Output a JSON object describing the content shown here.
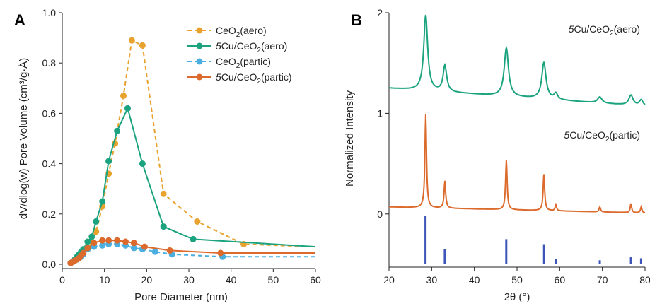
{
  "colors": {
    "ceo2_aero": "#E8A22E",
    "cu_ceo2_aero": "#1BA37F",
    "ceo2_partic": "#4AAEE0",
    "cu_ceo2_partic": "#DB6A2C",
    "reference": "#3D55B8",
    "axis": "#222222"
  },
  "chart_data": [
    {
      "panel": "A",
      "type": "line",
      "xlabel": "Pore Diameter (nm)",
      "ylabel": "dV/dlog(w) Pore Volume (cm³/g·Å)",
      "xlim": [
        0,
        60
      ],
      "ylim": [
        0,
        1.0
      ],
      "xticks": [
        "0",
        "10",
        "20",
        "30",
        "40",
        "50",
        "60"
      ],
      "yticks": [
        "0.0",
        "0.2",
        "0.4",
        "0.6",
        "0.8",
        "1.0"
      ],
      "legend_position": "top-right",
      "series": [
        {
          "name": "CeO₂(aero)",
          "name_parts": [
            "CeO",
            "2",
            "(aero)"
          ],
          "style": "dashed",
          "color": "#E8A22E",
          "points": [
            [
              2.0,
              0.005
            ],
            [
              2.5,
              0.01
            ],
            [
              3.0,
              0.015
            ],
            [
              3.5,
              0.02
            ],
            [
              4.0,
              0.025
            ],
            [
              4.5,
              0.03
            ],
            [
              5.0,
              0.04
            ],
            [
              6.0,
              0.06
            ],
            [
              7.0,
              0.09
            ],
            [
              8.0,
              0.13
            ],
            [
              9.5,
              0.23
            ],
            [
              11.0,
              0.36
            ],
            [
              12.5,
              0.48
            ],
            [
              14.5,
              0.67
            ],
            [
              16.5,
              0.89
            ],
            [
              19.0,
              0.87
            ],
            [
              24.0,
              0.28
            ],
            [
              32.0,
              0.17
            ],
            [
              43.0,
              0.08
            ],
            [
              60.0,
              0.07
            ]
          ]
        },
        {
          "name": "5Cu/CeO₂(aero)",
          "name_parts": [
            "5",
            "Cu/CeO",
            "2",
            "(aero)"
          ],
          "style": "solid",
          "color": "#1BA37F",
          "points": [
            [
              2.0,
              0.005
            ],
            [
              2.5,
              0.01
            ],
            [
              3.0,
              0.02
            ],
            [
              3.5,
              0.03
            ],
            [
              4.0,
              0.04
            ],
            [
              4.5,
              0.05
            ],
            [
              5.0,
              0.06
            ],
            [
              6.0,
              0.09
            ],
            [
              7.0,
              0.11
            ],
            [
              8.0,
              0.17
            ],
            [
              9.5,
              0.25
            ],
            [
              11.0,
              0.41
            ],
            [
              13.0,
              0.53
            ],
            [
              15.5,
              0.62
            ],
            [
              19.0,
              0.4
            ],
            [
              24.0,
              0.15
            ],
            [
              31.0,
              0.1
            ],
            [
              60.0,
              0.07
            ]
          ]
        },
        {
          "name": "CeO₂(partic)",
          "name_parts": [
            "CeO",
            "2",
            "(partic)"
          ],
          "style": "dashed",
          "color": "#4AAEE0",
          "points": [
            [
              2.0,
              0.005
            ],
            [
              2.5,
              0.01
            ],
            [
              3.0,
              0.015
            ],
            [
              3.5,
              0.02
            ],
            [
              4.0,
              0.025
            ],
            [
              4.5,
              0.03
            ],
            [
              5.0,
              0.04
            ],
            [
              6.0,
              0.06
            ],
            [
              7.5,
              0.07
            ],
            [
              9.5,
              0.075
            ],
            [
              11.0,
              0.08
            ],
            [
              13.0,
              0.08
            ],
            [
              15.0,
              0.075
            ],
            [
              17.0,
              0.065
            ],
            [
              19.0,
              0.06
            ],
            [
              22.0,
              0.05
            ],
            [
              26.0,
              0.04
            ],
            [
              38.0,
              0.03
            ],
            [
              60.0,
              0.03
            ]
          ]
        },
        {
          "name": "5Cu/CeO₂(partic)",
          "name_parts": [
            "5",
            "Cu/CeO",
            "2",
            "(partic)"
          ],
          "style": "solid",
          "color": "#DB6A2C",
          "points": [
            [
              2.0,
              0.005
            ],
            [
              2.5,
              0.01
            ],
            [
              3.0,
              0.015
            ],
            [
              3.5,
              0.02
            ],
            [
              4.0,
              0.025
            ],
            [
              4.5,
              0.035
            ],
            [
              5.0,
              0.045
            ],
            [
              6.0,
              0.065
            ],
            [
              7.5,
              0.085
            ],
            [
              9.5,
              0.095
            ],
            [
              11.0,
              0.095
            ],
            [
              13.0,
              0.095
            ],
            [
              15.0,
              0.09
            ],
            [
              17.0,
              0.085
            ],
            [
              19.5,
              0.07
            ],
            [
              25.5,
              0.055
            ],
            [
              37.5,
              0.045
            ],
            [
              60.0,
              0.045
            ]
          ]
        }
      ]
    },
    {
      "panel": "B",
      "type": "line",
      "xlabel": "2θ (°)",
      "ylabel": "Normalized Intensity",
      "xlim": [
        20,
        80
      ],
      "ylim": [
        -0.5,
        2.0
      ],
      "xticks": [
        "20",
        "30",
        "40",
        "50",
        "60",
        "70",
        "80"
      ],
      "yticks": [
        "0",
        "1",
        "2"
      ],
      "series": [
        {
          "name": "5Cu/CeO₂(aero)",
          "name_parts": [
            "5",
            "Cu/CeO",
            "2",
            "(aero)"
          ],
          "color": "#1BA37F",
          "baseline_start": 1.25,
          "baseline_end": 1.07,
          "peaks": [
            [
              28.6,
              0.75,
              0.55
            ],
            [
              33.1,
              0.26,
              0.5
            ],
            [
              47.5,
              0.48,
              0.6
            ],
            [
              56.3,
              0.36,
              0.6
            ],
            [
              59.1,
              0.06,
              0.5
            ],
            [
              69.4,
              0.06,
              0.6
            ],
            [
              76.7,
              0.1,
              0.6
            ],
            [
              79.1,
              0.06,
              0.5
            ]
          ]
        },
        {
          "name": "5Cu/CeO₂(partic)",
          "name_parts": [
            "5",
            "Cu/CeO",
            "2",
            "(partic)"
          ],
          "color": "#DB6A2C",
          "baseline_start": 0.07,
          "baseline_end": 0.01,
          "peaks": [
            [
              28.6,
              0.93,
              0.22
            ],
            [
              33.1,
              0.27,
              0.22
            ],
            [
              47.5,
              0.49,
              0.22
            ],
            [
              56.3,
              0.36,
              0.22
            ],
            [
              59.1,
              0.06,
              0.2
            ],
            [
              69.4,
              0.05,
              0.2
            ],
            [
              76.7,
              0.09,
              0.2
            ],
            [
              79.1,
              0.06,
              0.2
            ]
          ]
        }
      ],
      "reference_lines": {
        "baseline": -0.5,
        "lines": [
          [
            28.55,
            -0.02
          ],
          [
            33.08,
            -0.35
          ],
          [
            47.48,
            -0.25
          ],
          [
            56.34,
            -0.3
          ],
          [
            59.09,
            -0.45
          ],
          [
            69.4,
            -0.46
          ],
          [
            76.7,
            -0.43
          ],
          [
            79.07,
            -0.44
          ]
        ]
      }
    }
  ]
}
